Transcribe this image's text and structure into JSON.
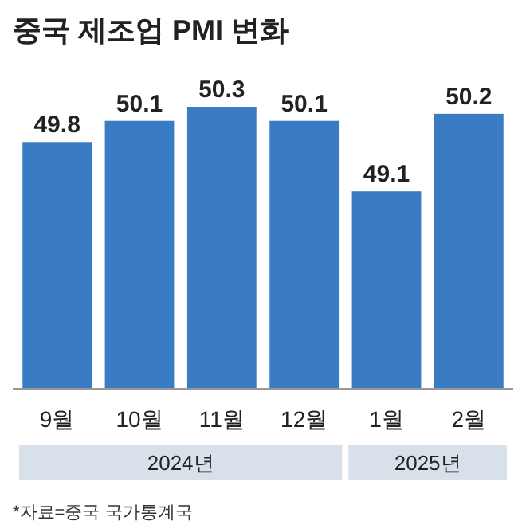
{
  "chart_data": {
    "type": "bar",
    "title": "중국 제조업 PMI 변화",
    "categories": [
      "9월",
      "10월",
      "11월",
      "12월",
      "1월",
      "2월"
    ],
    "values": [
      49.8,
      50.1,
      50.3,
      50.1,
      49.1,
      50.2
    ],
    "color": "#3a7cc3",
    "ylim": [
      46.3,
      50.3
    ],
    "data_labels": true,
    "relative": false,
    "annotations": [
      "2024년",
      "2025년",
      "*자료=중국 국가통계국"
    ]
  }
}
